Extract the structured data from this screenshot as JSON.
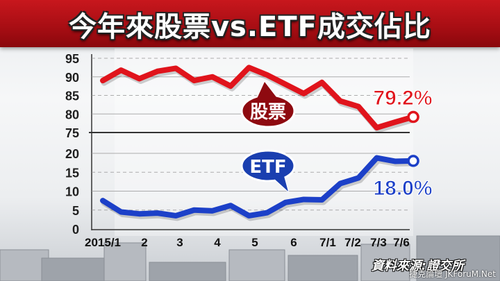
{
  "title": "今年來股票vs.ETF成交佔比",
  "source": "資料來源:證交所",
  "watermark": "捷克論壇 JKForuM.Net",
  "colors": {
    "stock": "#e0141c",
    "etf": "#1c40c8",
    "banner": "#b1121a",
    "stock_callout": "#8e0a10",
    "etf_callout": "#1a3fb0"
  },
  "chart_data": {
    "type": "line",
    "broken_axis": true,
    "x_labels": [
      "2015/1",
      "2",
      "3",
      "4",
      "5",
      "6",
      "7/1",
      "7/2",
      "7/3",
      "7/6"
    ],
    "upper_panel": {
      "ylim": [
        75,
        95
      ],
      "ticks": [
        75,
        80,
        85,
        90,
        95
      ],
      "series": [
        {
          "name": "股票",
          "x": [
            0,
            0.5,
            1,
            1.5,
            2,
            2.5,
            3,
            3.5,
            4,
            4.5,
            5,
            5.5,
            6,
            6.5,
            7,
            7.5,
            8,
            8.5
          ],
          "values": [
            89,
            91.8,
            89.5,
            91.5,
            92.3,
            89,
            90,
            87.5,
            92.5,
            90.5,
            88,
            85.5,
            88.5,
            83.5,
            82,
            76.3,
            77.8,
            79.2
          ],
          "end_label": "79.2%"
        }
      ]
    },
    "lower_panel": {
      "ylim": [
        0,
        20
      ],
      "ticks": [
        0,
        5,
        10,
        15,
        20
      ],
      "series": [
        {
          "name": "ETF",
          "x": [
            0,
            0.5,
            1,
            1.5,
            2,
            2.5,
            3,
            3.5,
            4,
            4.5,
            5,
            5.5,
            6,
            6.5,
            7,
            7.5,
            8,
            8.5
          ],
          "values": [
            7.5,
            4.5,
            4,
            4.2,
            3.5,
            5,
            4.8,
            6.2,
            3.5,
            4.3,
            7,
            7.8,
            7.7,
            12,
            13.5,
            18.8,
            17.9,
            18.0
          ],
          "end_label": "18.0%"
        }
      ]
    },
    "grid": "dashed major lines"
  }
}
